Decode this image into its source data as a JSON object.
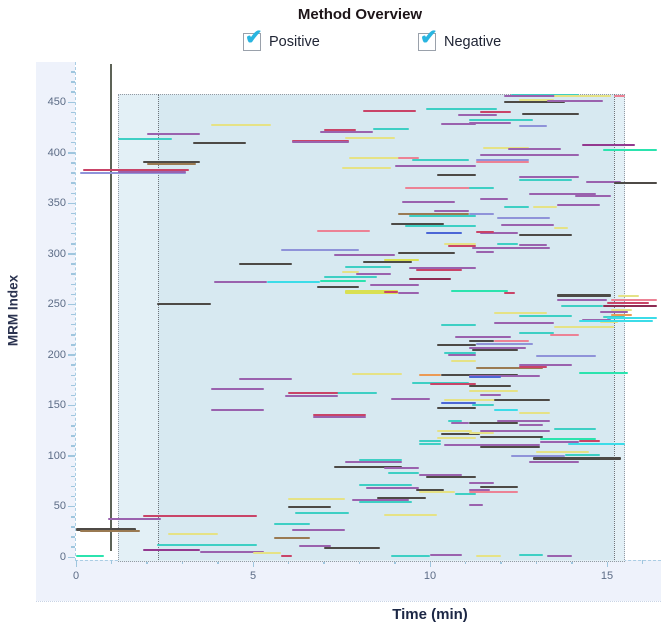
{
  "header": {
    "title": "Method Overview",
    "checkboxes": [
      {
        "label": "Positive",
        "checked": true
      },
      {
        "label": "Negative",
        "checked": true
      }
    ],
    "check_glyph": "✔",
    "check_color": "#29b5e0"
  },
  "chart_data": {
    "type": "scatter",
    "subtype": "scheduled-mrm-segment-plot",
    "title": "Method Overview",
    "xlabel": "Time (min)",
    "ylabel": "MRM Index",
    "xlim": [
      0,
      16.5
    ],
    "ylim": [
      0,
      487
    ],
    "x_major_ticks": [
      0,
      5,
      10,
      15
    ],
    "x_minor_step": 1,
    "y_major_ticks": [
      0,
      50,
      100,
      150,
      200,
      250,
      300,
      350,
      400,
      450
    ],
    "y_minor_step": 10,
    "grid": false,
    "legend": "none",
    "acquisition_window": {
      "t0": 1.19,
      "t1": 15.45,
      "mrm0": -3,
      "mrm1": 458,
      "inner_t0": 2.32,
      "inner_t1": 15.2
    },
    "time_marker_t": 1.0,
    "palette": {
      "P": "#9a62ae",
      "M": "#93398f",
      "L": "#8f93d9",
      "T": "#3ecfc4",
      "G": "#2be3ae",
      "C": "#3cdce8",
      "D": "#4d4a46",
      "B": "#9a7a52",
      "Y": "#e5e286",
      "K": "#d9e052",
      "R": "#c94468",
      "S": "#ec8295",
      "O": "#eb9a55",
      "U": "#4b66d6",
      "N": "#8d2b52"
    },
    "segments": [
      [
        12.3,
        14.2,
        457,
        "T"
      ],
      [
        12.1,
        13.9,
        456,
        "P"
      ],
      [
        13.5,
        15.1,
        456,
        "Y"
      ],
      [
        15.2,
        15.5,
        456,
        "S"
      ],
      [
        12.1,
        13.8,
        450,
        "D"
      ],
      [
        12.5,
        13.5,
        452,
        "Y"
      ],
      [
        13.3,
        14.9,
        451,
        "P"
      ],
      [
        8.1,
        9.6,
        441,
        "R"
      ],
      [
        9.9,
        11.9,
        443,
        "T"
      ],
      [
        10.8,
        11.9,
        437,
        "P"
      ],
      [
        11.4,
        12.3,
        440,
        "R"
      ],
      [
        12.6,
        14.2,
        438,
        "D"
      ],
      [
        3.8,
        5.5,
        427,
        "Y"
      ],
      [
        10.3,
        11.3,
        428,
        "P"
      ],
      [
        11.1,
        12.9,
        432,
        "T"
      ],
      [
        11.1,
        12.3,
        429,
        "P"
      ],
      [
        12.5,
        13.3,
        426,
        "L"
      ],
      [
        6.9,
        8.4,
        420,
        "P"
      ],
      [
        7.0,
        7.9,
        422,
        "R"
      ],
      [
        8.4,
        9.4,
        423,
        "T"
      ],
      [
        2.0,
        3.5,
        418,
        "P"
      ],
      [
        7.6,
        9.0,
        414,
        "Y"
      ],
      [
        1.2,
        2.7,
        413,
        "T"
      ],
      [
        6.1,
        7.7,
        411,
        "R"
      ],
      [
        6.1,
        7.7,
        410,
        "P"
      ],
      [
        3.3,
        4.8,
        409,
        "D"
      ],
      [
        14.3,
        15.8,
        407,
        "M"
      ],
      [
        14.9,
        16.4,
        403,
        "G"
      ],
      [
        11.5,
        12.8,
        405,
        "Y"
      ],
      [
        12.2,
        13.7,
        404,
        "P"
      ],
      [
        7.7,
        9.3,
        395,
        "Y"
      ],
      [
        9.1,
        9.7,
        395,
        "S"
      ],
      [
        9.5,
        11.1,
        393,
        "T"
      ],
      [
        1.9,
        3.5,
        391,
        "D"
      ],
      [
        2.0,
        3.4,
        389,
        "B"
      ],
      [
        9.0,
        11.3,
        387,
        "P"
      ],
      [
        7.5,
        8.9,
        385,
        "Y"
      ],
      [
        0.2,
        3.2,
        383,
        "R"
      ],
      [
        0.1,
        3.1,
        380,
        "L"
      ],
      [
        1.2,
        3.1,
        381,
        "P"
      ],
      [
        11.4,
        14.2,
        398,
        "P"
      ],
      [
        11.3,
        12.8,
        393,
        "L"
      ],
      [
        11.3,
        12.8,
        391,
        "S"
      ],
      [
        10.2,
        11.3,
        378,
        "D"
      ],
      [
        12.5,
        14.2,
        376,
        "P"
      ],
      [
        12.5,
        14.0,
        373,
        "T"
      ],
      [
        14.4,
        15.4,
        371,
        "P"
      ],
      [
        15.2,
        16.4,
        370,
        "D"
      ],
      [
        9.3,
        11.3,
        365,
        "S"
      ],
      [
        11.1,
        11.8,
        365,
        "T"
      ],
      [
        12.8,
        14.7,
        359,
        "P"
      ],
      [
        14.1,
        15.1,
        357,
        "P"
      ],
      [
        11.4,
        12.2,
        354,
        "P"
      ],
      [
        9.2,
        10.7,
        351,
        "P"
      ],
      [
        13.6,
        14.8,
        348,
        "P"
      ],
      [
        12.1,
        12.8,
        346,
        "T"
      ],
      [
        12.9,
        13.6,
        346,
        "Y"
      ],
      [
        9.1,
        11.1,
        339,
        "B"
      ],
      [
        9.4,
        11.3,
        337,
        "T"
      ],
      [
        10.1,
        11.1,
        342,
        "P"
      ],
      [
        11.1,
        11.8,
        339,
        "L"
      ],
      [
        11.9,
        13.4,
        335,
        "L"
      ],
      [
        8.9,
        10.4,
        329,
        "D"
      ],
      [
        9.3,
        11.3,
        327,
        "T"
      ],
      [
        12.0,
        13.5,
        328,
        "P"
      ],
      [
        13.5,
        13.9,
        325,
        "Y"
      ],
      [
        6.8,
        8.3,
        322,
        "S"
      ],
      [
        9.9,
        10.9,
        320,
        "U"
      ],
      [
        11.4,
        12.5,
        320,
        "P"
      ],
      [
        11.3,
        11.8,
        321,
        "R"
      ],
      [
        12.5,
        14.0,
        318,
        "D"
      ],
      [
        10.4,
        11.3,
        310,
        "Y"
      ],
      [
        10.5,
        11.3,
        308,
        "R"
      ],
      [
        11.9,
        12.5,
        310,
        "T"
      ],
      [
        12.5,
        13.3,
        309,
        "P"
      ],
      [
        11.2,
        13.4,
        306,
        "P"
      ],
      [
        5.8,
        8.0,
        304,
        "L"
      ],
      [
        9.1,
        10.7,
        301,
        "D"
      ],
      [
        7.3,
        9.0,
        299,
        "P"
      ],
      [
        11.3,
        11.8,
        302,
        "P"
      ],
      [
        8.7,
        9.7,
        294,
        "K"
      ],
      [
        8.1,
        9.5,
        292,
        "D"
      ],
      [
        4.6,
        6.1,
        290,
        "D"
      ],
      [
        7.6,
        8.9,
        287,
        "T"
      ],
      [
        9.4,
        11.3,
        286,
        "P"
      ],
      [
        9.6,
        10.9,
        284,
        "R"
      ],
      [
        7.5,
        8.0,
        282,
        "Y"
      ],
      [
        7.9,
        8.9,
        280,
        "P"
      ],
      [
        7.0,
        8.5,
        277,
        "T"
      ],
      [
        9.4,
        10.6,
        275,
        "N"
      ],
      [
        3.9,
        5.4,
        272,
        "P"
      ],
      [
        5.4,
        6.9,
        272,
        "C"
      ],
      [
        6.9,
        8.2,
        273,
        "G"
      ],
      [
        8.3,
        9.7,
        269,
        "P"
      ],
      [
        6.8,
        8.0,
        267,
        "D"
      ],
      [
        7.6,
        9.1,
        263,
        "K",
        4
      ],
      [
        8.7,
        9.1,
        262,
        "R"
      ],
      [
        9.1,
        9.7,
        261,
        "P"
      ],
      [
        10.6,
        12.2,
        263,
        "G"
      ],
      [
        12.1,
        12.4,
        261,
        "R"
      ],
      [
        2.3,
        3.8,
        250,
        "D"
      ],
      [
        13.6,
        15.1,
        259,
        "D",
        3
      ],
      [
        15.3,
        15.9,
        258,
        "Y"
      ],
      [
        13.6,
        15.0,
        254,
        "P"
      ],
      [
        15.1,
        16.4,
        254,
        "S"
      ],
      [
        15.0,
        16.2,
        251,
        "R"
      ],
      [
        14.9,
        16.4,
        248,
        "N"
      ],
      [
        13.7,
        14.9,
        248,
        "T"
      ],
      [
        15.1,
        15.7,
        244,
        "Y"
      ],
      [
        14.8,
        15.6,
        242,
        "P"
      ],
      [
        15.1,
        15.7,
        239,
        "O"
      ],
      [
        14.9,
        15.5,
        237,
        "T"
      ],
      [
        15.0,
        16.4,
        236,
        "C"
      ],
      [
        14.8,
        15.3,
        232,
        "Y"
      ],
      [
        11.8,
        13.3,
        241,
        "Y"
      ],
      [
        12.5,
        14.0,
        238,
        "T"
      ],
      [
        14.3,
        15.1,
        234,
        "P"
      ],
      [
        11.8,
        13.5,
        231,
        "P"
      ],
      [
        14.2,
        16.3,
        233,
        "C"
      ],
      [
        13.5,
        15.2,
        227,
        "Y"
      ],
      [
        10.3,
        11.3,
        229,
        "T"
      ],
      [
        10.7,
        12.3,
        218,
        "P"
      ],
      [
        12.5,
        13.5,
        222,
        "T"
      ],
      [
        13.4,
        14.2,
        220,
        "S"
      ],
      [
        10.2,
        11.3,
        210,
        "D"
      ],
      [
        11.1,
        11.8,
        214,
        "D"
      ],
      [
        11.8,
        12.8,
        214,
        "S"
      ],
      [
        11.3,
        12.9,
        211,
        "L"
      ],
      [
        10.4,
        11.3,
        202,
        "T"
      ],
      [
        10.5,
        11.3,
        200,
        "P"
      ],
      [
        11.1,
        12.7,
        207,
        "P"
      ],
      [
        11.2,
        12.5,
        205,
        "D"
      ],
      [
        10.6,
        11.3,
        194,
        "Y"
      ],
      [
        13.0,
        14.7,
        199,
        "L"
      ],
      [
        7.8,
        9.2,
        181,
        "Y"
      ],
      [
        9.7,
        10.3,
        180,
        "O"
      ],
      [
        10.3,
        12.5,
        180,
        "D"
      ],
      [
        9.5,
        11.1,
        172,
        "T"
      ],
      [
        10.0,
        11.3,
        171,
        "R"
      ],
      [
        12.5,
        14.0,
        190,
        "P"
      ],
      [
        11.3,
        13.2,
        187,
        "B"
      ],
      [
        12.5,
        13.3,
        188,
        "R"
      ],
      [
        14.2,
        15.6,
        182,
        "G"
      ],
      [
        11.1,
        13.1,
        179,
        "P"
      ],
      [
        11.1,
        12.0,
        178,
        "U"
      ],
      [
        4.6,
        6.1,
        176,
        "P"
      ],
      [
        3.8,
        5.3,
        166,
        "P"
      ],
      [
        7.0,
        8.5,
        162,
        "T"
      ],
      [
        6.0,
        7.4,
        162,
        "R"
      ],
      [
        5.9,
        7.4,
        159,
        "P"
      ],
      [
        11.1,
        12.3,
        169,
        "D"
      ],
      [
        11.1,
        12.5,
        164,
        "Y"
      ],
      [
        8.9,
        10.0,
        156,
        "P"
      ],
      [
        10.4,
        13.2,
        155,
        "Y"
      ],
      [
        10.3,
        11.3,
        152,
        "U"
      ],
      [
        11.4,
        12.0,
        160,
        "P"
      ],
      [
        11.8,
        13.4,
        155,
        "D"
      ],
      [
        10.2,
        11.3,
        147,
        "D"
      ],
      [
        11.2,
        11.8,
        150,
        "T"
      ],
      [
        3.8,
        5.3,
        145,
        "P"
      ],
      [
        6.7,
        8.2,
        140,
        "R"
      ],
      [
        6.7,
        8.2,
        138,
        "P"
      ],
      [
        11.8,
        12.5,
        145,
        "C"
      ],
      [
        12.5,
        13.4,
        142,
        "Y"
      ],
      [
        10.5,
        10.9,
        135,
        "T"
      ],
      [
        10.6,
        11.1,
        133,
        "P"
      ],
      [
        11.9,
        13.4,
        135,
        "P"
      ],
      [
        11.1,
        12.5,
        133,
        "D"
      ],
      [
        12.5,
        13.2,
        131,
        "P"
      ],
      [
        10.2,
        11.2,
        125,
        "Y"
      ],
      [
        10.3,
        11.4,
        122,
        "D"
      ],
      [
        13.5,
        14.7,
        127,
        "T"
      ],
      [
        11.4,
        13.4,
        125,
        "P"
      ],
      [
        11.1,
        11.8,
        123,
        "Y"
      ],
      [
        11.4,
        13.2,
        119,
        "D"
      ],
      [
        13.1,
        14.7,
        117,
        "G"
      ],
      [
        10.2,
        11.3,
        118,
        "Y"
      ],
      [
        9.7,
        10.3,
        115,
        "T"
      ],
      [
        13.1,
        14.2,
        114,
        "P"
      ],
      [
        14.2,
        14.8,
        115,
        "R"
      ],
      [
        13.9,
        15.5,
        112,
        "C"
      ],
      [
        9.7,
        10.3,
        112,
        "T"
      ],
      [
        10.4,
        13.1,
        111,
        "P"
      ],
      [
        11.4,
        13.1,
        109,
        "D"
      ],
      [
        13.0,
        14.5,
        104,
        "Y"
      ],
      [
        13.8,
        14.8,
        101,
        "T"
      ],
      [
        12.3,
        13.8,
        100,
        "L"
      ],
      [
        12.9,
        15.4,
        98,
        "D",
        3
      ],
      [
        12.8,
        14.2,
        94,
        "P"
      ],
      [
        8.0,
        9.2,
        96,
        "T"
      ],
      [
        7.6,
        9.2,
        94,
        "P"
      ],
      [
        7.3,
        9.2,
        89,
        "D"
      ],
      [
        8.7,
        9.7,
        88,
        "P"
      ],
      [
        8.8,
        9.7,
        83,
        "T"
      ],
      [
        9.7,
        10.9,
        81,
        "P"
      ],
      [
        9.9,
        11.3,
        79,
        "D"
      ],
      [
        11.1,
        11.8,
        73,
        "P"
      ],
      [
        11.4,
        12.5,
        69,
        "D"
      ],
      [
        11.1,
        12.5,
        64,
        "S"
      ],
      [
        8.0,
        9.5,
        71,
        "T"
      ],
      [
        8.2,
        9.7,
        68,
        "P"
      ],
      [
        9.6,
        10.4,
        66,
        "D"
      ],
      [
        9.7,
        10.7,
        64,
        "Y"
      ],
      [
        10.7,
        11.3,
        62,
        "T"
      ],
      [
        11.1,
        11.7,
        66,
        "P"
      ],
      [
        8.5,
        9.9,
        58,
        "D"
      ],
      [
        7.8,
        9.4,
        56,
        "P"
      ],
      [
        8.0,
        9.5,
        54,
        "T"
      ],
      [
        6.0,
        7.6,
        57,
        "Y"
      ],
      [
        6.0,
        7.2,
        49,
        "D"
      ],
      [
        6.2,
        7.7,
        44,
        "T"
      ],
      [
        8.7,
        10.2,
        42,
        "Y"
      ],
      [
        1.9,
        5.1,
        41,
        "R"
      ],
      [
        11.1,
        11.5,
        51,
        "P"
      ],
      [
        0.9,
        2.4,
        38,
        "P"
      ],
      [
        5.6,
        6.6,
        33,
        "T"
      ],
      [
        6.1,
        7.6,
        27,
        "P"
      ],
      [
        0.0,
        1.7,
        28,
        "D",
        3
      ],
      [
        0.1,
        1.8,
        26,
        "B"
      ],
      [
        2.6,
        4.0,
        23,
        "Y"
      ],
      [
        5.6,
        6.6,
        19,
        "B"
      ],
      [
        2.3,
        5.1,
        12,
        "T"
      ],
      [
        7.0,
        8.6,
        9,
        "D"
      ],
      [
        6.3,
        7.2,
        11,
        "P"
      ],
      [
        1.9,
        3.5,
        7,
        "M"
      ],
      [
        3.5,
        5.3,
        5,
        "P"
      ],
      [
        5.0,
        5.8,
        4,
        "Y"
      ],
      [
        0.0,
        0.8,
        1,
        "G"
      ],
      [
        8.9,
        10.0,
        1,
        "T"
      ],
      [
        10.0,
        10.9,
        2,
        "P"
      ],
      [
        5.8,
        6.1,
        1,
        "R"
      ],
      [
        11.3,
        12.0,
        1,
        "Y"
      ],
      [
        12.5,
        13.2,
        2,
        "T"
      ],
      [
        13.3,
        14.0,
        1,
        "P"
      ]
    ]
  }
}
